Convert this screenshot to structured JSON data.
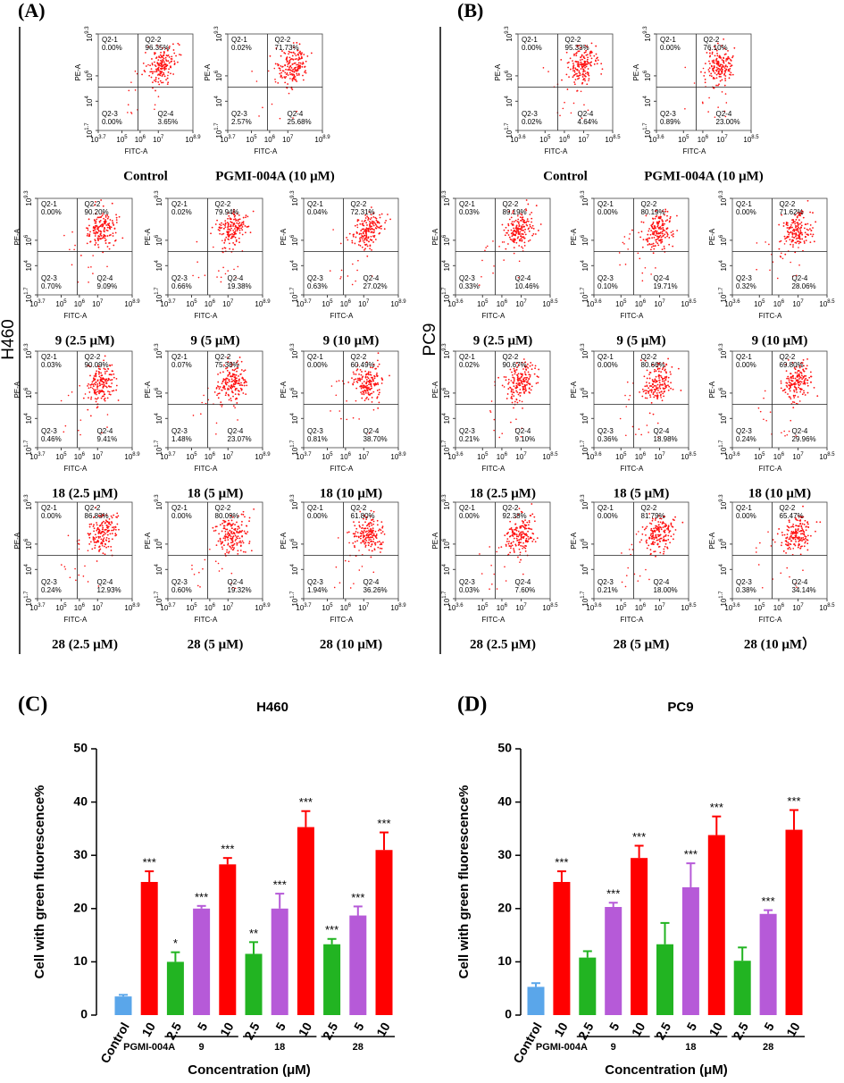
{
  "panels": [
    {
      "label": "(A)",
      "cell_line": "H460",
      "tick_base": "10",
      "xtick_exponents": [
        3.7,
        5,
        6,
        7,
        8.9
      ],
      "ytick_exponents": [
        1.7,
        4,
        6,
        9.3
      ],
      "x_label": "FITC-A",
      "y_label": "PE-A",
      "quadrant_names": [
        "Q2-1",
        "Q2-2",
        "Q2-3",
        "Q2-4"
      ],
      "rows": [
        [
          {
            "caption": "Control",
            "quadrants": [
              "0.00%",
              "96.35%",
              "0.00%",
              "3.65%"
            ]
          },
          {
            "caption": "PGMI-004A (10 μM)",
            "quadrants": [
              "0.02%",
              "71.73%",
              "2.57%",
              "25.68%"
            ]
          }
        ],
        [
          {
            "caption": "9 (2.5 μM)",
            "quadrants": [
              "0.00%",
              "90.20%",
              "0.70%",
              "9.09%"
            ]
          },
          {
            "caption": "9 (5 μM)",
            "quadrants": [
              "0.02%",
              "79.94%",
              "0.66%",
              "19.38%"
            ]
          },
          {
            "caption": "9 (10 μM)",
            "quadrants": [
              "0.04%",
              "72.31%",
              "0.63%",
              "27.02%"
            ]
          }
        ],
        [
          {
            "caption": "18 (2.5 μM)",
            "quadrants": [
              "0.03%",
              "90.09%",
              "0.46%",
              "9.41%"
            ]
          },
          {
            "caption": "18 (5 μM)",
            "quadrants": [
              "0.07%",
              "75.38%",
              "1.48%",
              "23.07%"
            ]
          },
          {
            "caption": "18 (10 μM)",
            "quadrants": [
              "0.00%",
              "60.49%",
              "0.81%",
              "38.70%"
            ]
          }
        ],
        [
          {
            "caption": "28 (2.5 μM)",
            "quadrants": [
              "0.00%",
              "86.83%",
              "0.24%",
              "12.93%"
            ]
          },
          {
            "caption": "28 (5 μM)",
            "quadrants": [
              "0.00%",
              "80.09%",
              "0.60%",
              "19.32%"
            ]
          },
          {
            "caption": "28 (10 μM)",
            "quadrants": [
              "0.00%",
              "61.80%",
              "1.94%",
              "36.26%"
            ]
          }
        ]
      ]
    },
    {
      "label": "(B)",
      "cell_line": "PC9",
      "tick_base": "10",
      "xtick_exponents": [
        3.6,
        5,
        6,
        7,
        8.5
      ],
      "ytick_exponents": [
        1.7,
        4,
        6,
        9.3
      ],
      "x_label": "FITC-A",
      "y_label": "PE-A",
      "quadrant_names": [
        "Q2-1",
        "Q2-2",
        "Q2-3",
        "Q2-4"
      ],
      "rows": [
        [
          {
            "caption": "Control",
            "quadrants": [
              "0.00%",
              "95.33%",
              "0.02%",
              "4.64%"
            ]
          },
          {
            "caption": "PGMI-004A (10 μM)",
            "quadrants": [
              "0.00%",
              "76.10%",
              "0.89%",
              "23.00%"
            ]
          }
        ],
        [
          {
            "caption": "9 (2.5 μM)",
            "quadrants": [
              "0.03%",
              "89.19%",
              "0.33%",
              "10.46%"
            ]
          },
          {
            "caption": "9 (5 μM)",
            "quadrants": [
              "0.00%",
              "80.19%",
              "0.10%",
              "19.71%"
            ]
          },
          {
            "caption": "9 (10 μM)",
            "quadrants": [
              "0.00%",
              "71.62%",
              "0.32%",
              "28.06%"
            ]
          }
        ],
        [
          {
            "caption": "18 (2.5 μM)",
            "quadrants": [
              "0.02%",
              "90.67%",
              "0.21%",
              "9.10%"
            ]
          },
          {
            "caption": "18 (5 μM)",
            "quadrants": [
              "0.00%",
              "80.66%",
              "0.36%",
              "18.98%"
            ]
          },
          {
            "caption": "18 (10 μM)",
            "quadrants": [
              "0.00%",
              "69.80%",
              "0.24%",
              "29.96%"
            ]
          }
        ],
        [
          {
            "caption": "28 (2.5 μM)",
            "quadrants": [
              "0.00%",
              "92.38%",
              "0.03%",
              "7.60%"
            ]
          },
          {
            "caption": "28 (5 μM)",
            "quadrants": [
              "0.00%",
              "81.79%",
              "0.21%",
              "18.00%"
            ]
          },
          {
            "caption": "28 (10 μM）",
            "quadrants": [
              "0.00%",
              "65.47%",
              "0.38%",
              "34.14%"
            ]
          }
        ]
      ]
    }
  ],
  "chart_data": [
    {
      "type": "bar",
      "panel_label": "(C)",
      "title": "H460",
      "y_label": "Cell with green fluorescence%",
      "x_label": "Concentration (μM)",
      "category_groups": [
        {
          "name": null,
          "categories": [
            "Control"
          ]
        },
        {
          "name": "PGMI-004A",
          "categories": [
            "10"
          ]
        },
        {
          "name": "9",
          "categories": [
            "2.5",
            "5",
            "10"
          ]
        },
        {
          "name": "18",
          "categories": [
            "2.5",
            "5",
            "10"
          ]
        },
        {
          "name": "28",
          "categories": [
            "2.5",
            "5",
            "10"
          ]
        }
      ],
      "values": [
        3.5,
        25,
        10,
        20,
        28.3,
        11.5,
        20,
        35.3,
        13.3,
        18.7,
        31
      ],
      "errors": [
        0.3,
        2,
        1.8,
        0.5,
        1.2,
        2.2,
        2.8,
        3,
        1,
        1.7,
        3.3
      ],
      "colors": [
        "#5aa6ea",
        "#ff0000",
        "#22b422",
        "#b65ad8",
        "#ff0000",
        "#22b422",
        "#b65ad8",
        "#ff0000",
        "#22b422",
        "#b65ad8",
        "#ff0000"
      ],
      "annotations": [
        null,
        "***",
        "*",
        "***",
        "***",
        "**",
        "***",
        "***",
        "***",
        "***",
        "***"
      ],
      "ylim": [
        0,
        50
      ],
      "yticks": [
        0,
        10,
        20,
        30,
        40,
        50
      ]
    },
    {
      "type": "bar",
      "panel_label": "(D)",
      "title": "PC9",
      "y_label": "Cell with green fluorescence%",
      "x_label": "Concentration (μM)",
      "category_groups": [
        {
          "name": null,
          "categories": [
            "Control"
          ]
        },
        {
          "name": "PGMI-004A",
          "categories": [
            "10"
          ]
        },
        {
          "name": "9",
          "categories": [
            "2.5",
            "5",
            "10"
          ]
        },
        {
          "name": "18",
          "categories": [
            "2.5",
            "5",
            "10"
          ]
        },
        {
          "name": "28",
          "categories": [
            "2.5",
            "5",
            "10"
          ]
        }
      ],
      "values": [
        5.3,
        25,
        10.8,
        20.3,
        29.5,
        13.3,
        24,
        33.8,
        10.2,
        19,
        34.8
      ],
      "errors": [
        0.7,
        2,
        1.2,
        0.8,
        2.3,
        4,
        4.5,
        3.5,
        2.5,
        0.7,
        3.7
      ],
      "colors": [
        "#5aa6ea",
        "#ff0000",
        "#22b422",
        "#b65ad8",
        "#ff0000",
        "#22b422",
        "#b65ad8",
        "#ff0000",
        "#22b422",
        "#b65ad8",
        "#ff0000"
      ],
      "annotations": [
        null,
        "***",
        null,
        "***",
        "***",
        null,
        "***",
        "***",
        null,
        "***",
        "***"
      ],
      "ylim": [
        0,
        50
      ],
      "yticks": [
        0,
        10,
        20,
        30,
        40,
        50
      ]
    }
  ]
}
